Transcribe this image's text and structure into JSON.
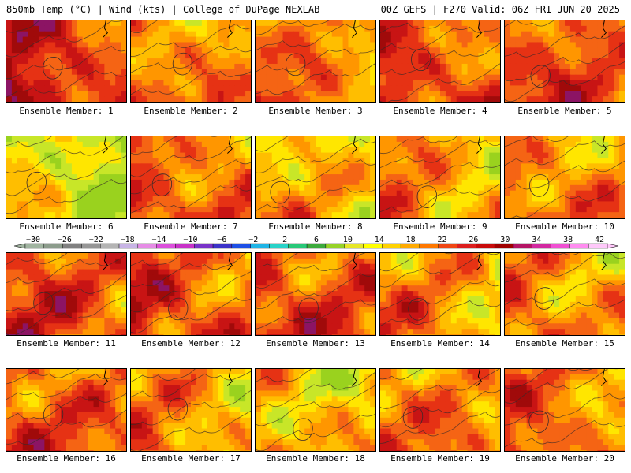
{
  "header": {
    "left": "850mb Temp (°C) | Wind (kts) | College of DuPage NEXLAB",
    "right": "00Z GEFS | F270 Valid: 06Z FRI JUN 20 2025"
  },
  "members": [
    {
      "label": "Ensemble Member: 1",
      "warmth": 0.8
    },
    {
      "label": "Ensemble Member: 2",
      "warmth": 0.55
    },
    {
      "label": "Ensemble Member: 3",
      "warmth": 0.55
    },
    {
      "label": "Ensemble Member: 4",
      "warmth": 0.7
    },
    {
      "label": "Ensemble Member: 5",
      "warmth": 0.7
    },
    {
      "label": "Ensemble Member: 6",
      "warmth": 0.2
    },
    {
      "label": "Ensemble Member: 7",
      "warmth": 0.65
    },
    {
      "label": "Ensemble Member: 8",
      "warmth": 0.4
    },
    {
      "label": "Ensemble Member: 9",
      "warmth": 0.5
    },
    {
      "label": "Ensemble Member: 10",
      "warmth": 0.55
    },
    {
      "label": "Ensemble Member: 11",
      "warmth": 0.7
    },
    {
      "label": "Ensemble Member: 12",
      "warmth": 0.7
    },
    {
      "label": "Ensemble Member: 13",
      "warmth": 0.7
    },
    {
      "label": "Ensemble Member: 14",
      "warmth": 0.5
    },
    {
      "label": "Ensemble Member: 15",
      "warmth": 0.55
    },
    {
      "label": "Ensemble Member: 16",
      "warmth": 0.65
    },
    {
      "label": "Ensemble Member: 17",
      "warmth": 0.5
    },
    {
      "label": "Ensemble Member: 18",
      "warmth": 0.4
    },
    {
      "label": "Ensemble Member: 19",
      "warmth": 0.55
    },
    {
      "label": "Ensemble Member: 20",
      "warmth": 0.6
    }
  ],
  "colorbar": {
    "tick_labels": [
      "−30",
      "−26",
      "−22",
      "−18",
      "−14",
      "−10",
      "−6",
      "−2",
      "2",
      "6",
      "10",
      "14",
      "18",
      "22",
      "26",
      "30",
      "34",
      "38",
      "42"
    ],
    "colors": [
      "#a0b4a0",
      "#8c9c8c",
      "#808080",
      "#969696",
      "#b4b4b4",
      "#c8b4e6",
      "#e68ce6",
      "#dc50dc",
      "#c832c8",
      "#7832c8",
      "#3c32c8",
      "#1e50e6",
      "#1eb4e6",
      "#28d2c8",
      "#28c878",
      "#3caa3c",
      "#96d228",
      "#e6e628",
      "#ffff00",
      "#ffd200",
      "#ffaa00",
      "#ff7800",
      "#f04614",
      "#dc1e1e",
      "#c80a0a",
      "#a00000",
      "#b41464",
      "#d228a0",
      "#f050d2",
      "#ff8cf0",
      "#ffc8fa"
    ]
  },
  "map_colors": [
    "#9ad21e",
    "#c8e628",
    "#ffe600",
    "#ffbe00",
    "#ff9600",
    "#f56414",
    "#e63214",
    "#c81414",
    "#a00a0a",
    "#8c1464",
    "#b4288c"
  ]
}
